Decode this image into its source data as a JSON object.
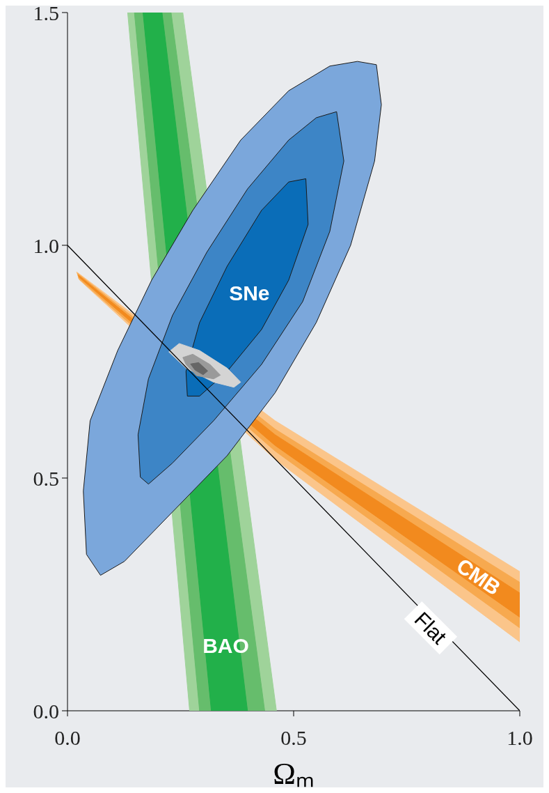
{
  "chart_data": {
    "type": "area",
    "xlabel": "Ωₘ",
    "xlim": [
      0,
      1
    ],
    "ylim": [
      0,
      1.5
    ],
    "xticks": [
      {
        "value": 0,
        "label": "0.0"
      },
      {
        "value": 0.5,
        "label": "0.5"
      },
      {
        "value": 1,
        "label": "1.0"
      }
    ],
    "yticks": [
      {
        "value": 0,
        "label": "0.0"
      },
      {
        "value": 0.5,
        "label": "0.5"
      },
      {
        "value": 1,
        "label": "1.0"
      },
      {
        "value": 1.5,
        "label": "1.5"
      }
    ],
    "grid": false,
    "legend": false,
    "series": [
      {
        "color": "#9fd39a",
        "x": [
          0.133,
          0.255,
          0.462,
          0.27
        ],
        "values": [
          1.5,
          1.5,
          0,
          0
        ]
      },
      {
        "color": "#66bd6c",
        "x": [
          0.148,
          0.229,
          0.436,
          0.292
        ],
        "values": [
          1.5,
          1.5,
          0,
          0
        ]
      },
      {
        "color": "#22b04a",
        "x": [
          0.167,
          0.209,
          0.398,
          0.318
        ],
        "values": [
          1.5,
          1.5,
          0,
          0
        ]
      },
      {
        "color": "#fbc58a",
        "x": [
          0.02,
          0.459,
          1.0,
          1.0,
          0.459,
          0.027
        ],
        "values": [
          0.943,
          0.623,
          0.299,
          0.148,
          0.54,
          0.925
        ]
      },
      {
        "color": "#f7a94f",
        "x": [
          0.022,
          0.459,
          1.0,
          1.0,
          0.459,
          0.025
        ],
        "values": [
          0.94,
          0.605,
          0.276,
          0.178,
          0.558,
          0.928
        ]
      },
      {
        "color": "#f28a1e",
        "x": [
          0.024,
          0.459,
          1.0,
          1.0,
          0.459,
          0.026
        ],
        "values": [
          0.936,
          0.593,
          0.253,
          0.201,
          0.57,
          0.931
        ]
      },
      {
        "color": "#7ba7db",
        "x": [
          0.683,
          0.641,
          0.58,
          0.489,
          0.383,
          0.277,
          0.186,
          0.111,
          0.05,
          0.035,
          0.042,
          0.073,
          0.126,
          0.232,
          0.353,
          0.459,
          0.55,
          0.626,
          0.679,
          0.694
        ],
        "values": [
          1.388,
          1.395,
          1.385,
          1.332,
          1.226,
          1.075,
          0.925,
          0.774,
          0.623,
          0.472,
          0.336,
          0.291,
          0.321,
          0.427,
          0.548,
          0.683,
          0.834,
          1.0,
          1.181,
          1.302
        ]
      },
      {
        "color": "#3d85c6",
        "x": [
          0.595,
          0.55,
          0.489,
          0.398,
          0.308,
          0.232,
          0.179,
          0.156,
          0.161,
          0.179,
          0.232,
          0.323,
          0.429,
          0.52,
          0.58,
          0.611
        ],
        "values": [
          1.287,
          1.274,
          1.226,
          1.121,
          0.985,
          0.849,
          0.713,
          0.593,
          0.502,
          0.487,
          0.532,
          0.623,
          0.744,
          0.879,
          1.03,
          1.181
        ]
      },
      {
        "color": "#0a6db8",
        "x": [
          0.527,
          0.489,
          0.429,
          0.353,
          0.292,
          0.262,
          0.265,
          0.292,
          0.353,
          0.429,
          0.489,
          0.532
        ],
        "values": [
          1.143,
          1.136,
          1.075,
          0.955,
          0.834,
          0.729,
          0.676,
          0.676,
          0.729,
          0.819,
          0.925,
          1.045
        ]
      },
      {
        "color": "#d4d4d4",
        "x": [
          0.224,
          0.247,
          0.292,
          0.353,
          0.383,
          0.368,
          0.323,
          0.262
        ],
        "values": [
          0.771,
          0.789,
          0.774,
          0.736,
          0.706,
          0.695,
          0.706,
          0.736
        ]
      },
      {
        "color": "#9a9a9a",
        "x": [
          0.255,
          0.277,
          0.315,
          0.338,
          0.323,
          0.285,
          0.262
        ],
        "values": [
          0.759,
          0.766,
          0.744,
          0.721,
          0.713,
          0.72,
          0.744
        ]
      },
      {
        "color": "#666666",
        "x": [
          0.272,
          0.29,
          0.31,
          0.3,
          0.282
        ],
        "values": [
          0.745,
          0.748,
          0.73,
          0.722,
          0.732
        ]
      },
      {
        "type": "line",
        "color": "#000000",
        "x": [
          0,
          1
        ],
        "values": [
          1,
          0
        ]
      }
    ],
    "annotations": [
      "SNe",
      "BAO",
      "CMB",
      "Flat"
    ]
  }
}
